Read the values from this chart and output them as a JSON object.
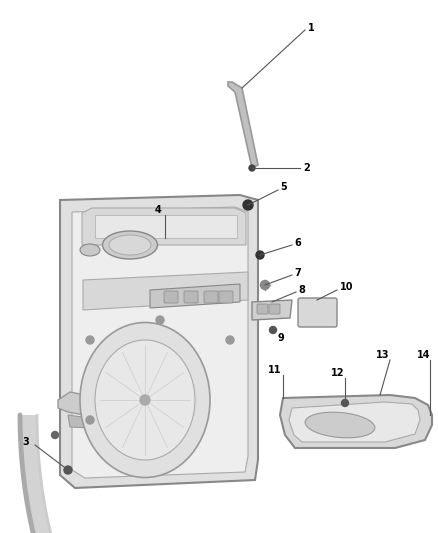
{
  "background_color": "#ffffff",
  "fig_width": 4.38,
  "fig_height": 5.33,
  "dpi": 100,
  "line_color": "#555555",
  "label_color": "#000000",
  "label_fontsize": 7.0,
  "part_line_color": "#888888",
  "fill_light": "#e8e8e8",
  "fill_mid": "#d0d0d0",
  "fill_dark": "#b8b8b8"
}
